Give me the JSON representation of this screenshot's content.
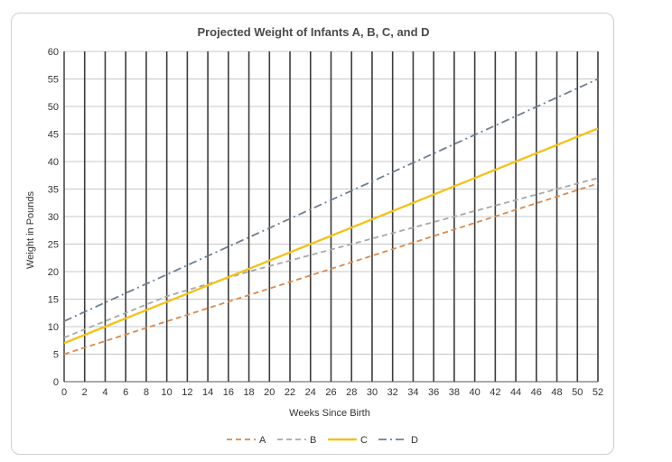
{
  "chart_data": {
    "type": "line",
    "title": "Projected Weight of Infants A, B, C, and D",
    "xlabel": "Weeks Since Birth",
    "ylabel": "Weight in Pounds",
    "xlim": [
      0,
      52
    ],
    "ylim": [
      0,
      60
    ],
    "xticks": [
      0,
      2,
      4,
      6,
      8,
      10,
      12,
      14,
      16,
      18,
      20,
      22,
      24,
      26,
      28,
      30,
      32,
      34,
      36,
      38,
      40,
      42,
      44,
      46,
      48,
      50,
      52
    ],
    "yticks": [
      0,
      5,
      10,
      15,
      20,
      25,
      30,
      35,
      40,
      45,
      50,
      55,
      60
    ],
    "grid": true,
    "legend_position": "bottom",
    "series": [
      {
        "name": "A",
        "color": "#d98a4e",
        "dash": "dashed",
        "x": [
          0,
          52
        ],
        "y": [
          5,
          36
        ]
      },
      {
        "name": "B",
        "color": "#a8a8a8",
        "dash": "dashed",
        "x": [
          0,
          10,
          18,
          52
        ],
        "y": [
          8,
          15.5,
          20,
          37
        ]
      },
      {
        "name": "C",
        "color": "#f2c21b",
        "dash": "solid",
        "x": [
          0,
          52
        ],
        "y": [
          7,
          46
        ]
      },
      {
        "name": "D",
        "color": "#6f8090",
        "dash": "dash-dot",
        "x": [
          0,
          52
        ],
        "y": [
          11,
          55
        ]
      }
    ]
  }
}
